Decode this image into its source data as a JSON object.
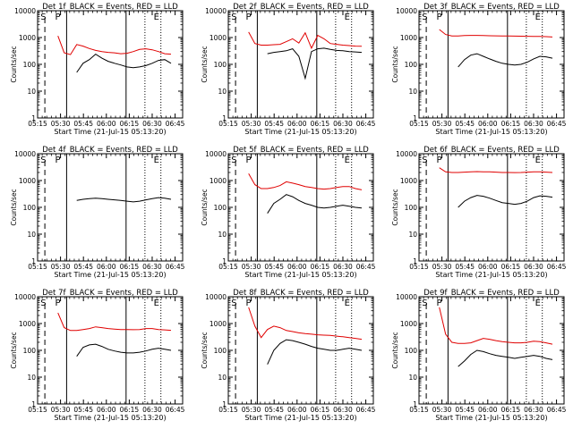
{
  "chart_data": [
    {
      "type": "line",
      "title": "Det 1f_BLACK = Events, RED = LLD",
      "xlabel": "Start Time (21-Jul-15 05:13:20)",
      "ylabel": "Counts/sec",
      "y_scale": "log",
      "ylim": [
        1,
        10000
      ],
      "y_ticks": [
        "1",
        "10",
        "100",
        "1000",
        "10000"
      ],
      "x_ticks": [
        "05:15",
        "05:30",
        "05:45",
        "06:00",
        "06:15",
        "06:30",
        "06:45"
      ],
      "markers": [
        "S",
        "P",
        "E"
      ],
      "series": [
        {
          "name": "LLD",
          "color": "#e00000",
          "values": [
            1150,
            270,
            230,
            550,
            480,
            390,
            330,
            300,
            280,
            270,
            250,
            260,
            300,
            360,
            380,
            350,
            300,
            250,
            240
          ]
        },
        {
          "name": "Events",
          "color": "#000000",
          "values": [
            null,
            null,
            null,
            50,
            110,
            150,
            240,
            170,
            130,
            110,
            95,
            80,
            75,
            80,
            90,
            110,
            140,
            150,
            110
          ]
        }
      ]
    },
    {
      "type": "line",
      "title": "Det 2f_BLACK = Events, RED = LLD",
      "xlabel": "Start Time (21-Jul-15 05:13:20)",
      "ylabel": "Counts/sec",
      "y_scale": "log",
      "ylim": [
        1,
        10000
      ],
      "y_ticks": [
        "1",
        "10",
        "100",
        "1000",
        "10000"
      ],
      "x_ticks": [
        "05:15",
        "05:30",
        "05:45",
        "06:00",
        "06:15",
        "06:30",
        "06:45"
      ],
      "markers": [
        "S",
        "P",
        "E"
      ],
      "series": [
        {
          "name": "LLD",
          "color": "#e00000",
          "values": [
            1600,
            600,
            520,
            520,
            540,
            560,
            700,
            900,
            620,
            1500,
            400,
            1200,
            900,
            600,
            560,
            520,
            500,
            480,
            470
          ]
        },
        {
          "name": "Events",
          "color": "#000000",
          "values": [
            null,
            null,
            null,
            250,
            280,
            300,
            320,
            380,
            200,
            30,
            300,
            380,
            400,
            360,
            330,
            320,
            300,
            290,
            280
          ]
        }
      ]
    },
    {
      "type": "line",
      "title": "Det 3f_BLACK = Events, RED = LLD",
      "xlabel": "Start Time (21-Jul-15 05:13:20)",
      "ylabel": "Counts/sec",
      "y_scale": "log",
      "ylim": [
        1,
        10000
      ],
      "y_ticks": [
        "1",
        "10",
        "100",
        "1000",
        "10000"
      ],
      "x_ticks": [
        "05:15",
        "05:30",
        "05:45",
        "06:00",
        "06:15",
        "06:30",
        "06:45"
      ],
      "markers": [
        "S",
        "P",
        "E"
      ],
      "series": [
        {
          "name": "LLD",
          "color": "#e00000",
          "values": [
            2000,
            1300,
            1150,
            1150,
            1180,
            1200,
            1200,
            1180,
            1170,
            1160,
            1150,
            1140,
            1130,
            1120,
            1110,
            1100,
            1100,
            1080,
            1050
          ]
        },
        {
          "name": "Events",
          "color": "#000000",
          "values": [
            null,
            null,
            null,
            80,
            150,
            220,
            250,
            200,
            160,
            130,
            110,
            100,
            95,
            100,
            120,
            160,
            200,
            190,
            170
          ]
        }
      ]
    },
    {
      "type": "line",
      "title": "Det 4f_BLACK = Events, RED = LLD",
      "xlabel": "Start Time (21-Jul-15 05:13:20)",
      "ylabel": "Counts/sec",
      "y_scale": "log",
      "ylim": [
        1,
        10000
      ],
      "y_ticks": [
        "1",
        "10",
        "100",
        "1000",
        "10000"
      ],
      "x_ticks": [
        "05:15",
        "05:30",
        "05:45",
        "06:00",
        "06:15",
        "06:30",
        "06:45"
      ],
      "markers": [
        "S",
        "P",
        "E"
      ],
      "series": [
        {
          "name": "Events",
          "color": "#000000",
          "values": [
            null,
            null,
            null,
            180,
            200,
            210,
            220,
            210,
            200,
            190,
            180,
            170,
            160,
            170,
            190,
            210,
            230,
            220,
            200
          ]
        }
      ]
    },
    {
      "type": "line",
      "title": "Det 5f_BLACK = Events, RED = LLD",
      "xlabel": "Start Time (21-Jul-15 05:13:20)",
      "ylabel": "Counts/sec",
      "y_scale": "log",
      "ylim": [
        1,
        10000
      ],
      "y_ticks": [
        "1",
        "10",
        "100",
        "1000",
        "10000"
      ],
      "x_ticks": [
        "05:15",
        "05:30",
        "05:45",
        "06:00",
        "06:15",
        "06:30",
        "06:45"
      ],
      "markers": [
        "S",
        "P",
        "E"
      ],
      "series": [
        {
          "name": "LLD",
          "color": "#e00000",
          "values": [
            1800,
            700,
            500,
            500,
            550,
            650,
            900,
            800,
            700,
            600,
            550,
            500,
            480,
            500,
            550,
            600,
            600,
            500,
            450
          ]
        },
        {
          "name": "Events",
          "color": "#000000",
          "values": [
            null,
            null,
            null,
            60,
            140,
            200,
            300,
            250,
            180,
            140,
            120,
            100,
            95,
            100,
            110,
            120,
            110,
            100,
            95
          ]
        }
      ]
    },
    {
      "type": "line",
      "title": "Det 6f_BLACK = Events, RED = LLD",
      "xlabel": "Start Time (21-Jul-15 05:13:20)",
      "ylabel": "Counts/sec",
      "y_scale": "log",
      "ylim": [
        1,
        10000
      ],
      "y_ticks": [
        "1",
        "10",
        "100",
        "1000",
        "10000"
      ],
      "x_ticks": [
        "05:15",
        "05:30",
        "05:45",
        "06:00",
        "06:15",
        "06:30",
        "06:45"
      ],
      "markers": [
        "S",
        "P",
        "E"
      ],
      "series": [
        {
          "name": "LLD",
          "color": "#e00000",
          "values": [
            3000,
            2100,
            2000,
            2000,
            2050,
            2100,
            2150,
            2100,
            2100,
            2050,
            2000,
            2000,
            1980,
            2000,
            2050,
            2100,
            2100,
            2050,
            2000
          ]
        },
        {
          "name": "Events",
          "color": "#000000",
          "values": [
            null,
            null,
            null,
            100,
            170,
            230,
            280,
            260,
            220,
            180,
            150,
            140,
            130,
            140,
            170,
            230,
            270,
            260,
            240
          ]
        }
      ]
    },
    {
      "type": "line",
      "title": "Det 7f_BLACK = Events, RED = LLD",
      "xlabel": "Start Time (21-Jul-15 05:13:20)",
      "ylabel": "Counts/sec",
      "y_scale": "log",
      "ylim": [
        1,
        10000
      ],
      "y_ticks": [
        "1",
        "10",
        "100",
        "1000",
        "10000"
      ],
      "x_ticks": [
        "05:15",
        "05:30",
        "05:45",
        "06:00",
        "06:15",
        "06:30",
        "06:45"
      ],
      "markers": [
        "S",
        "P",
        "E"
      ],
      "series": [
        {
          "name": "LLD",
          "color": "#e00000",
          "values": [
            2500,
            700,
            550,
            550,
            600,
            650,
            750,
            700,
            650,
            620,
            600,
            600,
            590,
            600,
            650,
            650,
            600,
            580,
            560
          ]
        },
        {
          "name": "Events",
          "color": "#000000",
          "values": [
            null,
            null,
            null,
            60,
            130,
            160,
            170,
            140,
            110,
            95,
            85,
            80,
            80,
            85,
            95,
            110,
            120,
            110,
            100
          ]
        }
      ]
    },
    {
      "type": "line",
      "title": "Det 8f_BLACK = Events, RED = LLD",
      "xlabel": "Start Time (21-Jul-15 05:13:20)",
      "ylabel": "Counts/sec",
      "y_scale": "log",
      "ylim": [
        1,
        10000
      ],
      "y_ticks": [
        "1",
        "10",
        "100",
        "1000",
        "10000"
      ],
      "x_ticks": [
        "05:15",
        "05:30",
        "05:45",
        "06:00",
        "06:15",
        "06:30",
        "06:45"
      ],
      "markers": [
        "S",
        "P",
        "E"
      ],
      "series": [
        {
          "name": "LLD",
          "color": "#e00000",
          "values": [
            4000,
            800,
            300,
            600,
            800,
            700,
            550,
            500,
            450,
            420,
            400,
            380,
            370,
            360,
            340,
            320,
            300,
            280,
            260
          ]
        },
        {
          "name": "Events",
          "color": "#000000",
          "values": [
            null,
            null,
            null,
            30,
            100,
            180,
            250,
            230,
            200,
            170,
            140,
            120,
            110,
            100,
            100,
            110,
            120,
            110,
            100
          ]
        }
      ]
    },
    {
      "type": "line",
      "title": "Det 9f_BLACK = Events, RED = LLD",
      "xlabel": "Start Time (21-Jul-15 05:13:20)",
      "ylabel": "Counts/sec",
      "y_scale": "log",
      "ylim": [
        1,
        10000
      ],
      "y_ticks": [
        "1",
        "10",
        "100",
        "1000",
        "10000"
      ],
      "x_ticks": [
        "05:15",
        "05:30",
        "05:45",
        "06:00",
        "06:15",
        "06:30",
        "06:45"
      ],
      "markers": [
        "S",
        "P",
        "E"
      ],
      "series": [
        {
          "name": "LLD",
          "color": "#e00000",
          "values": [
            4000,
            400,
            200,
            180,
            180,
            190,
            230,
            280,
            260,
            230,
            210,
            200,
            190,
            190,
            200,
            220,
            210,
            190,
            170
          ]
        },
        {
          "name": "Events",
          "color": "#000000",
          "values": [
            null,
            null,
            null,
            25,
            40,
            70,
            100,
            90,
            75,
            65,
            60,
            55,
            50,
            55,
            60,
            65,
            60,
            50,
            45
          ]
        }
      ]
    }
  ]
}
